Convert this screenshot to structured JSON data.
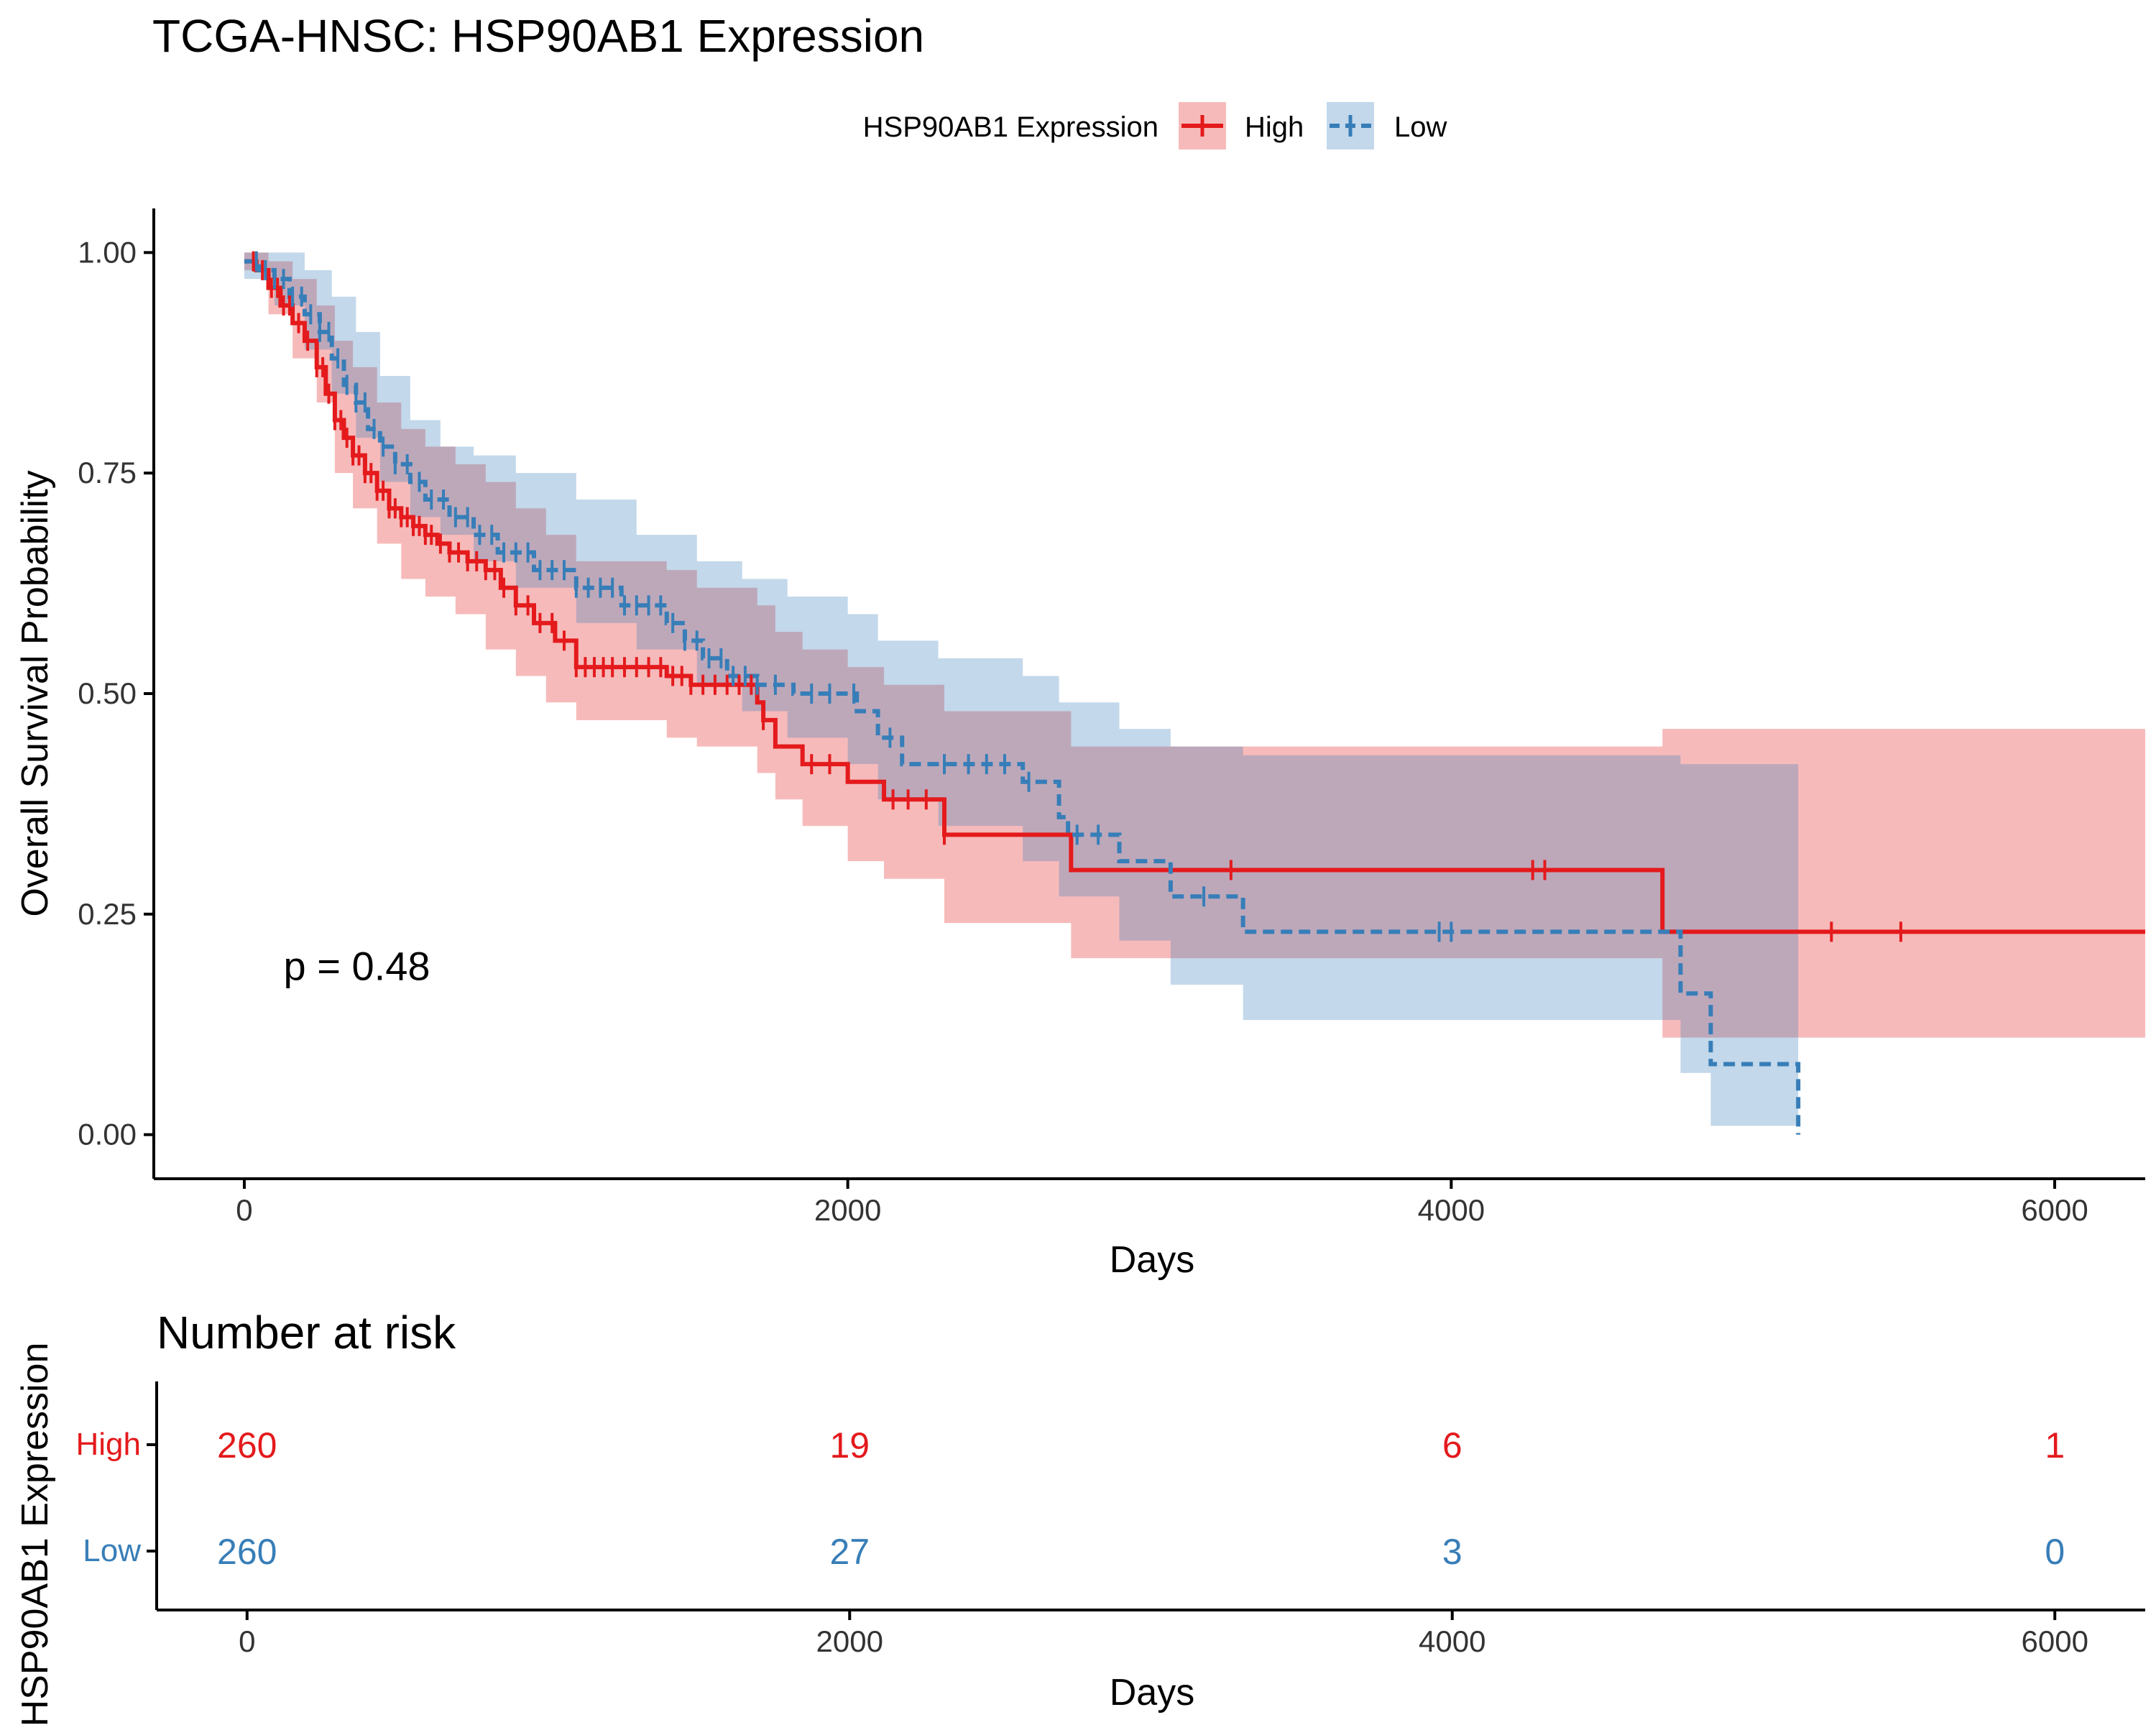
{
  "title": "TCGA-HNSC: HSP90AB1 Expression",
  "legend": {
    "title": "HSP90AB1 Expression",
    "position": "top",
    "items": [
      {
        "label": "High",
        "color": "#E41A1C",
        "line": "solid"
      },
      {
        "label": "Low",
        "color": "#377EB8",
        "line": "dashed"
      }
    ]
  },
  "chart_data": [
    {
      "type": "line",
      "subtype": "kaplan-meier",
      "xlabel": "Days",
      "ylabel": "Overall Survival Probability",
      "xlim": [
        -300,
        6300
      ],
      "ylim": [
        -0.05,
        1.05
      ],
      "xticks": [
        0,
        2000,
        4000,
        6000
      ],
      "xtick_labels": [
        "0",
        "2000",
        "4000",
        "6000"
      ],
      "yticks": [
        0,
        0.25,
        0.5,
        0.75,
        1
      ],
      "ytick_labels": [
        "0.00",
        "0.25",
        "0.50",
        "0.75",
        "1.00"
      ],
      "grid": false,
      "annotation": "p = 0.48",
      "annotation_at": [
        130,
        0.19
      ],
      "series": [
        {
          "name": "High",
          "color": "#E41A1C",
          "dash": "solid",
          "steps": [
            [
              0,
              0.99
            ],
            [
              40,
              0.98
            ],
            [
              80,
              0.96
            ],
            [
              120,
              0.94
            ],
            [
              160,
              0.92
            ],
            [
              200,
              0.9
            ],
            [
              240,
              0.87
            ],
            [
              270,
              0.84
            ],
            [
              300,
              0.81
            ],
            [
              330,
              0.79
            ],
            [
              360,
              0.77
            ],
            [
              400,
              0.75
            ],
            [
              440,
              0.73
            ],
            [
              480,
              0.71
            ],
            [
              520,
              0.7
            ],
            [
              560,
              0.69
            ],
            [
              600,
              0.68
            ],
            [
              640,
              0.67
            ],
            [
              680,
              0.66
            ],
            [
              740,
              0.65
            ],
            [
              800,
              0.64
            ],
            [
              850,
              0.62
            ],
            [
              900,
              0.6
            ],
            [
              960,
              0.58
            ],
            [
              1030,
              0.56
            ],
            [
              1100,
              0.53
            ],
            [
              1400,
              0.52
            ],
            [
              1480,
              0.51
            ],
            [
              1700,
              0.49
            ],
            [
              1720,
              0.47
            ],
            [
              1760,
              0.44
            ],
            [
              1850,
              0.42
            ],
            [
              2000,
              0.4
            ],
            [
              2120,
              0.38
            ],
            [
              2320,
              0.34
            ],
            [
              2740,
              0.3
            ],
            [
              4700,
              0.23
            ],
            [
              6300,
              0.23
            ]
          ],
          "upper": [
            [
              0,
              1
            ],
            [
              80,
              0.99
            ],
            [
              160,
              0.97
            ],
            [
              240,
              0.94
            ],
            [
              300,
              0.9
            ],
            [
              360,
              0.87
            ],
            [
              440,
              0.83
            ],
            [
              520,
              0.8
            ],
            [
              600,
              0.78
            ],
            [
              700,
              0.76
            ],
            [
              800,
              0.74
            ],
            [
              900,
              0.71
            ],
            [
              1000,
              0.68
            ],
            [
              1100,
              0.65
            ],
            [
              1400,
              0.64
            ],
            [
              1500,
              0.62
            ],
            [
              1700,
              0.6
            ],
            [
              1760,
              0.57
            ],
            [
              1850,
              0.55
            ],
            [
              2000,
              0.53
            ],
            [
              2120,
              0.51
            ],
            [
              2320,
              0.48
            ],
            [
              2740,
              0.44
            ],
            [
              3060,
              0.44
            ],
            [
              4700,
              0.46
            ],
            [
              6300,
              0.46
            ]
          ],
          "lower": [
            [
              0,
              0.98
            ],
            [
              80,
              0.93
            ],
            [
              160,
              0.88
            ],
            [
              240,
              0.83
            ],
            [
              300,
              0.75
            ],
            [
              360,
              0.71
            ],
            [
              440,
              0.67
            ],
            [
              520,
              0.63
            ],
            [
              600,
              0.61
            ],
            [
              700,
              0.59
            ],
            [
              800,
              0.55
            ],
            [
              900,
              0.52
            ],
            [
              1000,
              0.49
            ],
            [
              1100,
              0.47
            ],
            [
              1400,
              0.45
            ],
            [
              1500,
              0.44
            ],
            [
              1700,
              0.41
            ],
            [
              1760,
              0.38
            ],
            [
              1850,
              0.35
            ],
            [
              2000,
              0.31
            ],
            [
              2120,
              0.29
            ],
            [
              2320,
              0.24
            ],
            [
              2740,
              0.2
            ],
            [
              4700,
              0.11
            ],
            [
              6300,
              0.11
            ]
          ],
          "censor_x": [
            30,
            60,
            90,
            110,
            130,
            150,
            180,
            210,
            240,
            260,
            280,
            300,
            320,
            340,
            360,
            380,
            400,
            420,
            440,
            460,
            480,
            500,
            520,
            540,
            560,
            580,
            600,
            620,
            650,
            680,
            710,
            740,
            770,
            800,
            830,
            860,
            900,
            940,
            980,
            1020,
            1060,
            1100,
            1130,
            1160,
            1190,
            1220,
            1260,
            1300,
            1340,
            1380,
            1420,
            1450,
            1480,
            1520,
            1560,
            1600,
            1640,
            1680,
            1720,
            1880,
            1940,
            2150,
            2200,
            2260,
            2320,
            3270,
            4270,
            4310,
            5260,
            5490
          ],
          "risk": [
            260,
            19,
            6,
            1
          ]
        },
        {
          "name": "Low",
          "color": "#377EB8",
          "dash": "dashed",
          "steps": [
            [
              0,
              0.99
            ],
            [
              50,
              0.98
            ],
            [
              100,
              0.97
            ],
            [
              150,
              0.95
            ],
            [
              200,
              0.93
            ],
            [
              250,
              0.91
            ],
            [
              290,
              0.88
            ],
            [
              330,
              0.85
            ],
            [
              370,
              0.83
            ],
            [
              410,
              0.8
            ],
            [
              450,
              0.78
            ],
            [
              500,
              0.76
            ],
            [
              550,
              0.74
            ],
            [
              600,
              0.72
            ],
            [
              680,
              0.7
            ],
            [
              760,
              0.68
            ],
            [
              840,
              0.66
            ],
            [
              960,
              0.64
            ],
            [
              1100,
              0.62
            ],
            [
              1250,
              0.6
            ],
            [
              1400,
              0.58
            ],
            [
              1460,
              0.56
            ],
            [
              1520,
              0.54
            ],
            [
              1600,
              0.52
            ],
            [
              1700,
              0.51
            ],
            [
              1820,
              0.5
            ],
            [
              2030,
              0.48
            ],
            [
              2100,
              0.45
            ],
            [
              2180,
              0.42
            ],
            [
              2580,
              0.4
            ],
            [
              2700,
              0.36
            ],
            [
              2730,
              0.34
            ],
            [
              2900,
              0.31
            ],
            [
              3070,
              0.27
            ],
            [
              3310,
              0.23
            ],
            [
              4760,
              0.16
            ],
            [
              4860,
              0.08
            ],
            [
              5150,
              0
            ]
          ],
          "upper": [
            [
              0,
              1
            ],
            [
              100,
              1
            ],
            [
              200,
              0.98
            ],
            [
              290,
              0.95
            ],
            [
              370,
              0.91
            ],
            [
              450,
              0.86
            ],
            [
              550,
              0.81
            ],
            [
              650,
              0.78
            ],
            [
              760,
              0.77
            ],
            [
              900,
              0.75
            ],
            [
              1100,
              0.72
            ],
            [
              1300,
              0.68
            ],
            [
              1500,
              0.65
            ],
            [
              1650,
              0.63
            ],
            [
              1800,
              0.61
            ],
            [
              2000,
              0.59
            ],
            [
              2100,
              0.56
            ],
            [
              2300,
              0.54
            ],
            [
              2580,
              0.52
            ],
            [
              2700,
              0.49
            ],
            [
              2900,
              0.46
            ],
            [
              3070,
              0.44
            ],
            [
              3310,
              0.43
            ],
            [
              4760,
              0.42
            ],
            [
              5150,
              0.42
            ]
          ],
          "lower": [
            [
              0,
              0.97
            ],
            [
              100,
              0.94
            ],
            [
              200,
              0.89
            ],
            [
              290,
              0.84
            ],
            [
              370,
              0.79
            ],
            [
              450,
              0.74
            ],
            [
              550,
              0.7
            ],
            [
              650,
              0.68
            ],
            [
              760,
              0.65
            ],
            [
              900,
              0.62
            ],
            [
              1100,
              0.58
            ],
            [
              1300,
              0.55
            ],
            [
              1500,
              0.51
            ],
            [
              1650,
              0.48
            ],
            [
              1800,
              0.45
            ],
            [
              2000,
              0.42
            ],
            [
              2100,
              0.38
            ],
            [
              2300,
              0.35
            ],
            [
              2580,
              0.31
            ],
            [
              2700,
              0.27
            ],
            [
              2900,
              0.22
            ],
            [
              3070,
              0.17
            ],
            [
              3310,
              0.13
            ],
            [
              4760,
              0.07
            ],
            [
              4860,
              0.01
            ],
            [
              5150,
              0.01
            ]
          ],
          "censor_x": [
            40,
            70,
            100,
            130,
            160,
            190,
            220,
            250,
            280,
            310,
            340,
            370,
            400,
            430,
            460,
            500,
            540,
            580,
            620,
            660,
            700,
            740,
            780,
            820,
            860,
            900,
            940,
            980,
            1020,
            1060,
            1100,
            1140,
            1180,
            1220,
            1260,
            1300,
            1340,
            1380,
            1420,
            1460,
            1500,
            1540,
            1580,
            1620,
            1660,
            1700,
            1760,
            1880,
            1940,
            2020,
            2140,
            2320,
            2400,
            2460,
            2520,
            2600,
            2760,
            2830,
            3180,
            3960,
            4000
          ],
          "risk": [
            260,
            27,
            3,
            0
          ]
        }
      ]
    },
    {
      "type": "table",
      "title": "Number at risk",
      "xlabel": "Days",
      "ylabel": "HSP90AB1 Expression",
      "rows": [
        "High",
        "Low"
      ],
      "x": [
        0,
        2000,
        4000,
        6000
      ],
      "values": [
        [
          260,
          19,
          6,
          1
        ],
        [
          260,
          27,
          3,
          0
        ]
      ],
      "xtick_labels": [
        "0",
        "2000",
        "4000",
        "6000"
      ]
    }
  ]
}
